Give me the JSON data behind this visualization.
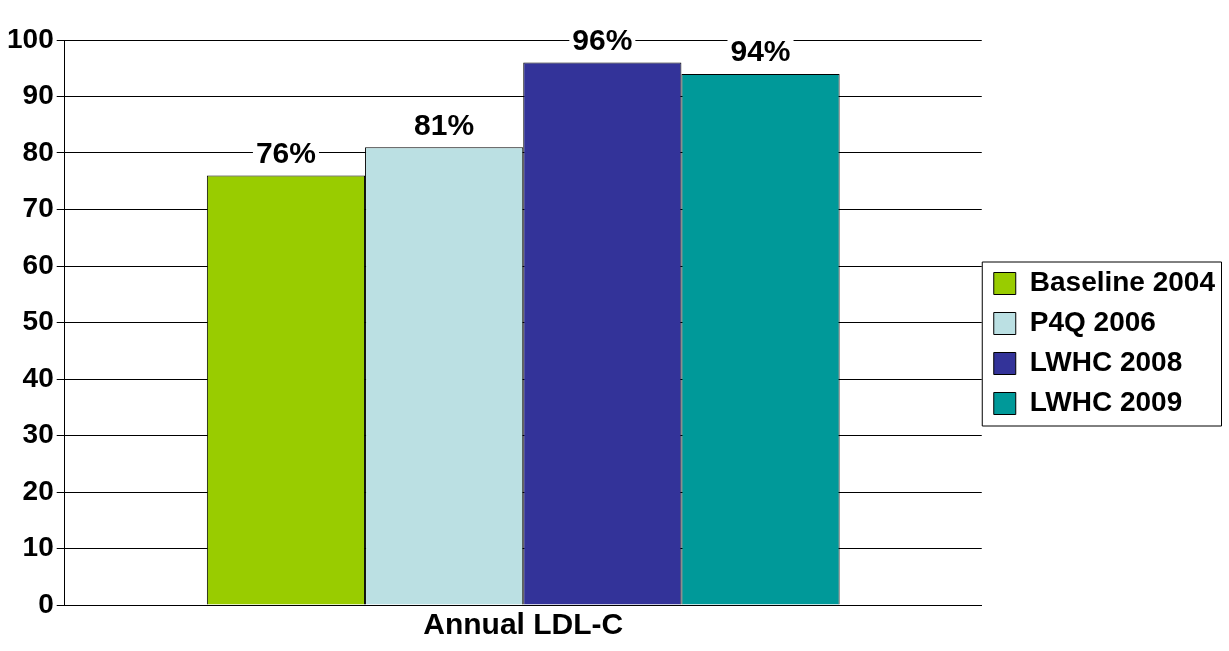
{
  "chart_data": {
    "type": "bar",
    "categories": [
      "Annual LDL-C"
    ],
    "ylim": [
      0,
      100
    ],
    "yticks": [
      0,
      10,
      20,
      30,
      40,
      50,
      60,
      70,
      80,
      90,
      100
    ],
    "grid": "y",
    "legend": "right",
    "series": [
      {
        "name": "Baseline 2004",
        "color": "#99cc00",
        "values": [
          76
        ],
        "value_labels": [
          "76%"
        ]
      },
      {
        "name": "P4Q 2006",
        "color": "#bbe0e3",
        "values": [
          81
        ],
        "value_labels": [
          "81%"
        ]
      },
      {
        "name": "LWHC 2008",
        "color": "#333399",
        "values": [
          96
        ],
        "value_labels": [
          "96%"
        ]
      },
      {
        "name": "LWHC 2009",
        "color": "#009999",
        "values": [
          94
        ],
        "value_labels": [
          "94%"
        ]
      }
    ]
  }
}
